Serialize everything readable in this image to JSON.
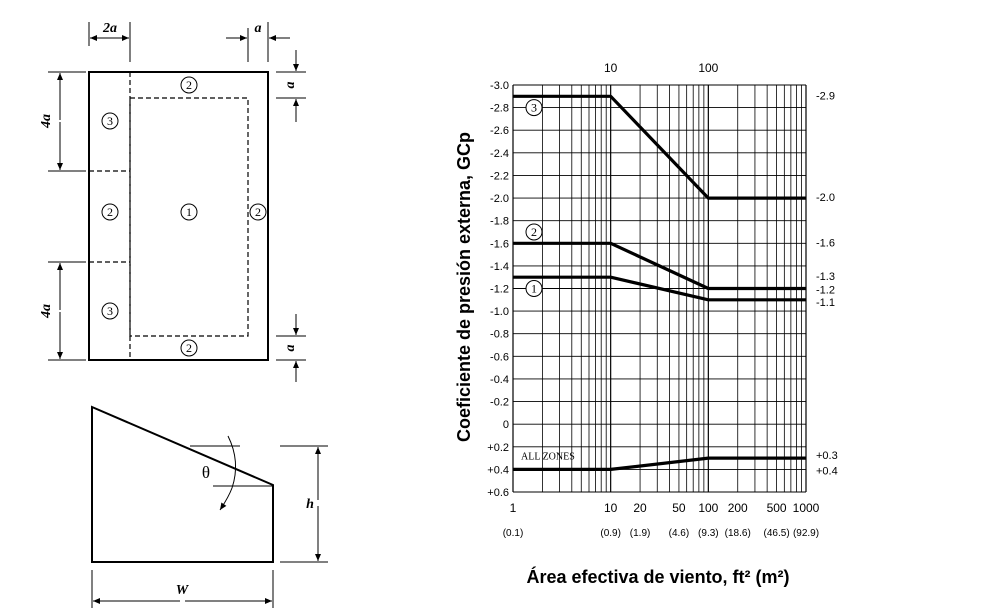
{
  "plan": {
    "dim_top_left": "2a",
    "dim_top_right": "a",
    "dim_right_top": "a",
    "dim_right_bottom": "a",
    "dim_left_top": "4a",
    "dim_left_bottom": "4a",
    "zones": [
      "2",
      "3",
      "2",
      "1",
      "2",
      "3",
      "2"
    ]
  },
  "section": {
    "theta": "θ",
    "h": "h",
    "w": "W"
  },
  "chart_data": {
    "type": "line",
    "ylabel": "Coeficiente de presión externa, GCp",
    "xlabel": "Área efectiva de viento, ft² (m²)",
    "x_scale": "log",
    "xlim": [
      1,
      1000
    ],
    "ylim": [
      0.6,
      -3.0
    ],
    "y_ticks": [
      "-3.0",
      "-2.8",
      "-2.6",
      "-2.4",
      "-2.2",
      "-2.0",
      "-1.8",
      "-1.6",
      "-1.4",
      "-1.2",
      "-1.0",
      "-0.8",
      "-0.6",
      "-0.4",
      "-0.2",
      "0",
      "+0.2",
      "+0.4",
      "+0.6"
    ],
    "x_ticks_bottom": [
      "1",
      "10",
      "20",
      "50",
      "100",
      "200",
      "500",
      "1000"
    ],
    "x_ticks_bottom_m2": [
      "(0.1)",
      "(0.9)",
      "(1.9)",
      "(4.6)",
      "(9.3)",
      "(18.6)",
      "(46.5)",
      "(92.9)"
    ],
    "x_ticks_top": [
      "10",
      "100"
    ],
    "series": [
      {
        "name": "3",
        "x": [
          1,
          10,
          100,
          1000
        ],
        "y": [
          -2.9,
          -2.9,
          -2.0,
          -2.0
        ]
      },
      {
        "name": "2",
        "x": [
          1,
          10,
          100,
          1000
        ],
        "y": [
          -1.6,
          -1.6,
          -1.2,
          -1.2
        ]
      },
      {
        "name": "1",
        "x": [
          1,
          10,
          100,
          1000
        ],
        "y": [
          -1.3,
          -1.3,
          -1.1,
          -1.1
        ]
      },
      {
        "name": "ALL ZONES",
        "x": [
          1,
          10,
          100,
          1000
        ],
        "y": [
          0.4,
          0.4,
          0.3,
          0.3
        ]
      }
    ],
    "right_labels": [
      "-2.9",
      "-2.0",
      "-1.6",
      "-1.3",
      "-1.2",
      "-1.1",
      "+0.3",
      "+0.4"
    ],
    "all_zones_label": "ALL ZONES"
  }
}
